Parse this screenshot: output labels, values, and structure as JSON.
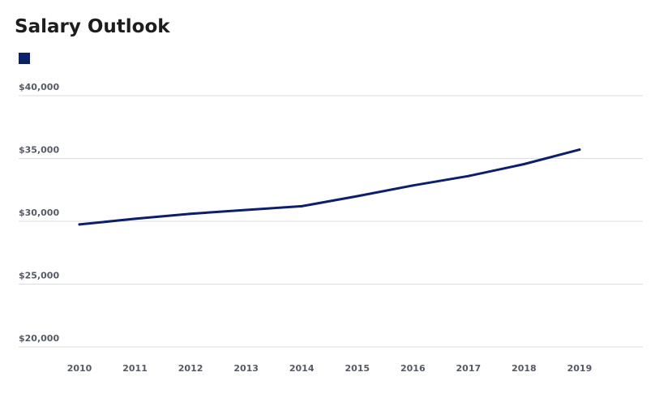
{
  "chart_data": {
    "type": "line",
    "title": "Salary Outlook",
    "xlabel": "",
    "ylabel": "",
    "categories": [
      "2010",
      "2011",
      "2012",
      "2013",
      "2014",
      "2015",
      "2016",
      "2017",
      "2018",
      "2019"
    ],
    "series": [
      {
        "values": [
          29750,
          30200,
          30600,
          30900,
          31200,
          32000,
          32850,
          33600,
          34550,
          35700
        ],
        "color": "#0b1f6b"
      }
    ],
    "ylim": [
      20000,
      40000
    ],
    "yticks": [
      20000,
      25000,
      30000,
      35000,
      40000
    ],
    "ytick_labels": [
      "$20,000",
      "$25,000",
      "$30,000",
      "$35,000",
      "$40,000"
    ],
    "grid": "horizontal",
    "legend": "top-left"
  }
}
